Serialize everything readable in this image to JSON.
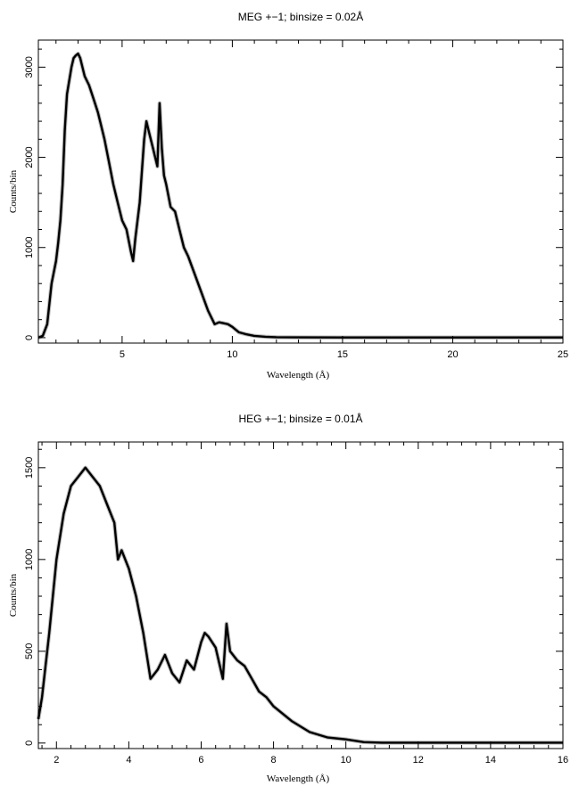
{
  "chart_data": [
    {
      "type": "line",
      "title": "MEG +−1; binsize = 0.02Å",
      "xlabel": "Wavelength (Å)",
      "ylabel": "Counts/bin",
      "xlim": [
        1.2,
        25
      ],
      "ylim": [
        -60,
        3300
      ],
      "xticks": [
        5,
        10,
        15,
        20,
        25
      ],
      "yticks": [
        0,
        1000,
        2000,
        3000
      ],
      "grid": false,
      "series": [
        {
          "color": "#000000",
          "x": [
            1.2,
            1.4,
            1.6,
            1.8,
            2.0,
            2.1,
            2.2,
            2.3,
            2.4,
            2.5,
            2.6,
            2.7,
            2.8,
            2.9,
            3.0,
            3.1,
            3.2,
            3.3,
            3.5,
            3.7,
            3.9,
            4.0,
            4.2,
            4.4,
            4.6,
            4.8,
            5.0,
            5.2,
            5.4,
            5.5,
            5.6,
            5.8,
            6.0,
            6.1,
            6.2,
            6.3,
            6.4,
            6.5,
            6.6,
            6.7,
            6.8,
            6.9,
            7.0,
            7.2,
            7.4,
            7.6,
            7.8,
            8.0,
            8.3,
            8.6,
            8.9,
            9.2,
            9.4,
            9.6,
            9.8,
            10.0,
            10.3,
            10.6,
            11.0,
            11.5,
            12.0,
            13.0,
            15.0,
            20.0,
            25.0
          ],
          "y": [
            0,
            20,
            150,
            600,
            850,
            1050,
            1300,
            1700,
            2300,
            2700,
            2850,
            3000,
            3100,
            3130,
            3150,
            3100,
            3000,
            2900,
            2800,
            2650,
            2500,
            2400,
            2200,
            1950,
            1700,
            1500,
            1300,
            1200,
            950,
            850,
            1100,
            1500,
            2200,
            2400,
            2300,
            2200,
            2100,
            2000,
            1900,
            2600,
            2100,
            1800,
            1700,
            1450,
            1400,
            1200,
            1000,
            900,
            700,
            500,
            300,
            150,
            170,
            160,
            150,
            120,
            60,
            40,
            20,
            10,
            5,
            3,
            2,
            2,
            2
          ]
        }
      ]
    },
    {
      "type": "line",
      "title": "HEG +−1; binsize = 0.01Å",
      "xlabel": "Wavelength (Å)",
      "ylabel": "Counts/bin",
      "xlim": [
        1.5,
        16
      ],
      "ylim": [
        -30,
        1640
      ],
      "xticks": [
        2,
        4,
        6,
        8,
        10,
        12,
        14,
        16
      ],
      "yticks": [
        0,
        500,
        1000,
        1500
      ],
      "grid": false,
      "series": [
        {
          "color": "#000000",
          "x": [
            1.5,
            1.6,
            1.8,
            2.0,
            2.2,
            2.4,
            2.6,
            2.8,
            3.0,
            3.2,
            3.4,
            3.6,
            3.7,
            3.8,
            4.0,
            4.2,
            4.4,
            4.6,
            4.8,
            5.0,
            5.2,
            5.4,
            5.6,
            5.8,
            6.0,
            6.1,
            6.2,
            6.4,
            6.6,
            6.7,
            6.8,
            7.0,
            7.2,
            7.4,
            7.6,
            7.8,
            8.0,
            8.5,
            9.0,
            9.5,
            10.0,
            10.5,
            11.0,
            12.0,
            14.0,
            16.0
          ],
          "y": [
            130,
            250,
            600,
            1000,
            1250,
            1400,
            1450,
            1500,
            1450,
            1400,
            1300,
            1200,
            1000,
            1050,
            950,
            800,
            600,
            350,
            400,
            480,
            380,
            330,
            450,
            400,
            550,
            600,
            580,
            520,
            350,
            650,
            500,
            450,
            420,
            350,
            280,
            250,
            200,
            120,
            60,
            30,
            20,
            5,
            2,
            2,
            2,
            2
          ]
        }
      ]
    }
  ]
}
